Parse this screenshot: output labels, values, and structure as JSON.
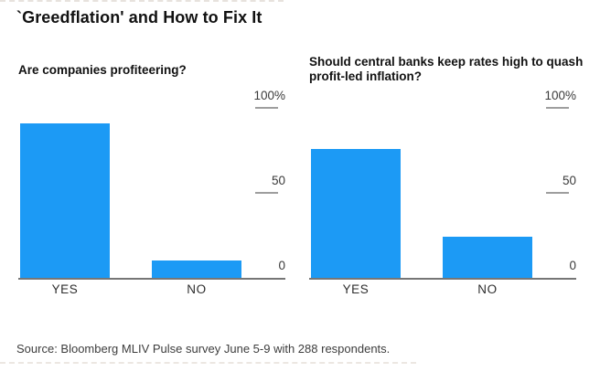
{
  "header": {
    "title": "`Greedflation' and How to Fix It"
  },
  "footer": {
    "source": "Source: Bloomberg MLIV Pulse survey June 5-9 with 288 respondents."
  },
  "colors": {
    "bar_blue": "#1c9af5",
    "axis_gray": "#767676",
    "tick_mark_gray": "#9e9e9e"
  },
  "chart_data": [
    {
      "type": "bar",
      "title": "Are companies profiteering?",
      "categories": [
        "YES",
        "NO"
      ],
      "values": [
        90,
        10
      ],
      "unit": "percent of respondents",
      "ylim": [
        0,
        100
      ],
      "ytick_values": [
        100,
        50,
        0
      ],
      "ytick_labels": [
        "100%",
        "50",
        "0"
      ],
      "bar_color": "#1c9af5",
      "grid": false,
      "legend": "none"
    },
    {
      "type": "bar",
      "title": "Should central banks keep rates high to quash profit-led inflation?",
      "categories": [
        "YES",
        "NO"
      ],
      "values": [
        75,
        24
      ],
      "unit": "percent of respondents",
      "ylim": [
        0,
        100
      ],
      "ytick_values": [
        100,
        50,
        0
      ],
      "ytick_labels": [
        "100%",
        "50",
        "0"
      ],
      "bar_color": "#1c9af5",
      "grid": false,
      "legend": "none"
    }
  ]
}
